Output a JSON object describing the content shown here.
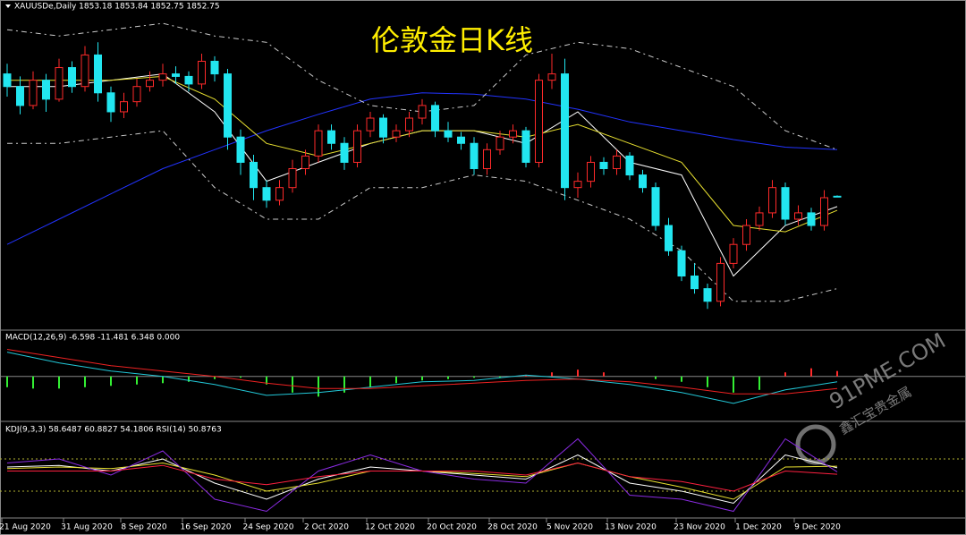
{
  "chart_data": {
    "type": "candlestick",
    "title": "XAUUSDe,Daily  1853.18 1853.84 1852.75 1852.75",
    "watermark": "伦敦金日K线",
    "logo": "91PME.COM",
    "logo_sub": "鑫汇宝贵金属",
    "up_color": "#ff2a2a",
    "down_color": "#22e6f0",
    "ylim": [
      1750,
      2000
    ],
    "ohlc": [
      [
        1950,
        1958,
        1932,
        1940
      ],
      [
        1940,
        1948,
        1918,
        1925
      ],
      [
        1925,
        1952,
        1922,
        1945
      ],
      [
        1945,
        1950,
        1920,
        1930
      ],
      [
        1930,
        1962,
        1928,
        1955
      ],
      [
        1955,
        1960,
        1935,
        1940
      ],
      [
        1940,
        1972,
        1936,
        1965
      ],
      [
        1965,
        1975,
        1928,
        1935
      ],
      [
        1935,
        1940,
        1912,
        1920
      ],
      [
        1920,
        1935,
        1915,
        1928
      ],
      [
        1928,
        1946,
        1924,
        1940
      ],
      [
        1940,
        1952,
        1936,
        1945
      ],
      [
        1945,
        1958,
        1940,
        1950
      ],
      [
        1950,
        1956,
        1942,
        1948
      ],
      [
        1948,
        1952,
        1936,
        1942
      ],
      [
        1942,
        1966,
        1938,
        1960
      ],
      [
        1960,
        1964,
        1944,
        1950
      ],
      [
        1950,
        1954,
        1890,
        1900
      ],
      [
        1900,
        1906,
        1870,
        1880
      ],
      [
        1880,
        1886,
        1850,
        1860
      ],
      [
        1860,
        1866,
        1844,
        1850
      ],
      [
        1850,
        1866,
        1846,
        1860
      ],
      [
        1860,
        1882,
        1856,
        1875
      ],
      [
        1875,
        1890,
        1870,
        1885
      ],
      [
        1885,
        1910,
        1880,
        1905
      ],
      [
        1905,
        1910,
        1890,
        1895
      ],
      [
        1895,
        1900,
        1874,
        1880
      ],
      [
        1880,
        1910,
        1876,
        1905
      ],
      [
        1905,
        1920,
        1900,
        1915
      ],
      [
        1915,
        1918,
        1895,
        1900
      ],
      [
        1900,
        1910,
        1896,
        1905
      ],
      [
        1905,
        1920,
        1900,
        1915
      ],
      [
        1915,
        1930,
        1910,
        1925
      ],
      [
        1925,
        1928,
        1900,
        1905
      ],
      [
        1905,
        1912,
        1896,
        1900
      ],
      [
        1900,
        1904,
        1890,
        1895
      ],
      [
        1895,
        1900,
        1870,
        1875
      ],
      [
        1875,
        1895,
        1870,
        1890
      ],
      [
        1890,
        1905,
        1886,
        1900
      ],
      [
        1900,
        1910,
        1895,
        1905
      ],
      [
        1905,
        1908,
        1876,
        1880
      ],
      [
        1880,
        1950,
        1876,
        1945
      ],
      [
        1945,
        1966,
        1938,
        1950
      ],
      [
        1950,
        1962,
        1850,
        1860
      ],
      [
        1860,
        1872,
        1852,
        1865
      ],
      [
        1865,
        1885,
        1860,
        1880
      ],
      [
        1880,
        1884,
        1870,
        1875
      ],
      [
        1875,
        1890,
        1870,
        1885
      ],
      [
        1885,
        1888,
        1866,
        1870
      ],
      [
        1870,
        1874,
        1856,
        1860
      ],
      [
        1860,
        1864,
        1826,
        1830
      ],
      [
        1830,
        1836,
        1806,
        1810
      ],
      [
        1810,
        1814,
        1786,
        1790
      ],
      [
        1790,
        1800,
        1776,
        1780
      ],
      [
        1780,
        1784,
        1764,
        1770
      ],
      [
        1770,
        1805,
        1766,
        1800
      ],
      [
        1800,
        1820,
        1796,
        1815
      ],
      [
        1815,
        1835,
        1810,
        1830
      ],
      [
        1830,
        1845,
        1826,
        1840
      ],
      [
        1840,
        1866,
        1836,
        1860
      ],
      [
        1860,
        1864,
        1830,
        1835
      ],
      [
        1835,
        1846,
        1830,
        1840
      ],
      [
        1840,
        1844,
        1826,
        1830
      ],
      [
        1830,
        1858,
        1826,
        1852
      ],
      [
        1853.18,
        1853.84,
        1852.75,
        1852.75
      ]
    ],
    "series": [
      {
        "name": "MA-long",
        "color": "#2233ff",
        "values": [
          1815,
          1835,
          1855,
          1875,
          1890,
          1905,
          1918,
          1930,
          1935,
          1934,
          1930,
          1922,
          1912,
          1905,
          1898,
          1892,
          1890
        ]
      },
      {
        "name": "MA-fast",
        "color": "#ffffff",
        "values": [
          1940,
          1940,
          1945,
          1950,
          1920,
          1865,
          1880,
          1895,
          1905,
          1905,
          1895,
          1920,
          1880,
          1870,
          1790,
          1830,
          1845
        ]
      },
      {
        "name": "MA-mid",
        "color": "#e8e030",
        "values": [
          1945,
          1945,
          1945,
          1948,
          1930,
          1895,
          1885,
          1895,
          1905,
          1905,
          1900,
          1910,
          1895,
          1880,
          1830,
          1825,
          1842
        ]
      },
      {
        "name": "BB-upper",
        "color": "#cccccc",
        "dash": true,
        "values": [
          1985,
          1980,
          1985,
          1990,
          1980,
          1975,
          1945,
          1925,
          1920,
          1925,
          1965,
          1975,
          1970,
          1955,
          1940,
          1905,
          1890
        ]
      },
      {
        "name": "BB-lower",
        "color": "#cccccc",
        "dash": true,
        "values": [
          1895,
          1895,
          1900,
          1905,
          1860,
          1835,
          1835,
          1860,
          1860,
          1870,
          1865,
          1850,
          1835,
          1810,
          1770,
          1770,
          1780
        ]
      }
    ],
    "macd": {
      "label": "MACD(12,26,9) -6.598 -11.481 6.348 0.000",
      "ylim": [
        -30,
        25
      ],
      "histogram": [
        -8,
        -9,
        -9,
        -8,
        -7,
        -6,
        -5,
        -4,
        -2,
        -1,
        -6,
        -12,
        -15,
        -12,
        -8,
        -5,
        -3,
        -2,
        -1,
        -1,
        1,
        3,
        5,
        3,
        0,
        -2,
        -4,
        -8,
        -12,
        -10,
        3,
        6,
        4
      ],
      "hist_up": "#ff2a2a",
      "hist_down": "#33ee33",
      "lines": [
        {
          "color": "#22c8d8",
          "values": [
            18,
            10,
            4,
            0,
            -6,
            -14,
            -12,
            -8,
            -4,
            -3,
            1,
            -2,
            -6,
            -12,
            -20,
            -10,
            -4
          ]
        },
        {
          "color": "#ee2222",
          "values": [
            20,
            14,
            8,
            4,
            0,
            -5,
            -9,
            -9,
            -7,
            -5,
            -3,
            -2,
            -4,
            -8,
            -13,
            -13,
            -9
          ]
        }
      ]
    },
    "kdj": {
      "label": "KDJ(9,3,3) 58.6487 60.8827 54.1806 RSI(14) 50.8763",
      "ylim": [
        0,
        100
      ],
      "levels": [
        70,
        30
      ],
      "lines": [
        {
          "color": "#ffffff",
          "values": [
            60,
            62,
            55,
            70,
            40,
            20,
            45,
            60,
            55,
            50,
            45,
            75,
            40,
            30,
            15,
            75,
            59
          ]
        },
        {
          "color": "#e8e030",
          "values": [
            58,
            60,
            58,
            65,
            50,
            30,
            40,
            55,
            55,
            52,
            48,
            65,
            48,
            35,
            20,
            60,
            61
          ]
        },
        {
          "color": "#8a2be2",
          "values": [
            65,
            70,
            50,
            80,
            20,
            5,
            55,
            75,
            55,
            45,
            40,
            95,
            25,
            20,
            5,
            95,
            54
          ]
        },
        {
          "color": "#ff2040",
          "values": [
            55,
            55,
            55,
            62,
            45,
            38,
            48,
            55,
            55,
            55,
            50,
            65,
            48,
            42,
            30,
            55,
            51
          ]
        }
      ]
    },
    "date_labels": [
      "21 Aug 2020",
      "31 Aug 2020",
      "8 Sep 2020",
      "16 Sep 2020",
      "24 Sep 2020",
      "2 Oct 2020",
      "12 Oct 2020",
      "20 Oct 2020",
      "28 Oct 2020",
      "5 Nov 2020",
      "13 Nov 2020",
      "23 Nov 2020",
      "1 Dec 2020",
      "9 Dec 2020"
    ]
  }
}
